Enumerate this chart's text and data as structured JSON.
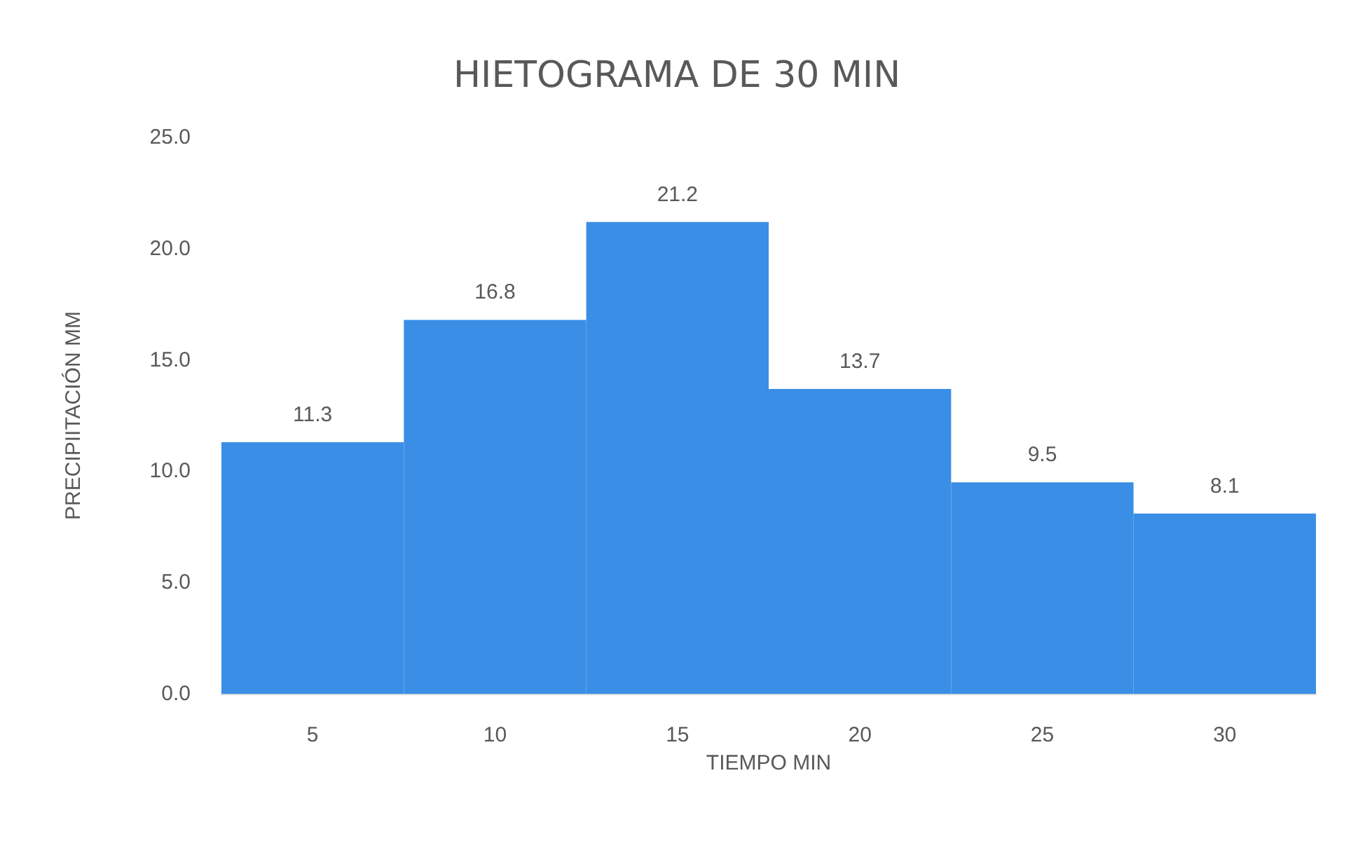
{
  "chart_data": {
    "type": "bar",
    "title": "HIETOGRAMA DE 30 MIN",
    "xlabel": "TIEMPO MIN",
    "ylabel": "PRECIPIITACIÓN MM",
    "categories": [
      "5",
      "10",
      "15",
      "20",
      "25",
      "30"
    ],
    "values": [
      11.3,
      16.8,
      21.2,
      13.7,
      9.5,
      8.1
    ],
    "color": "#3a8ee6",
    "ylim": [
      0,
      25
    ],
    "yticks": [
      {
        "value": 0,
        "label": "0.0"
      },
      {
        "value": 5,
        "label": "5.0"
      },
      {
        "value": 10,
        "label": "10.0"
      },
      {
        "value": 15,
        "label": "15.0"
      },
      {
        "value": 20,
        "label": "20.0"
      },
      {
        "value": 25,
        "label": "25.0"
      }
    ],
    "grid": false,
    "data_labels": true
  }
}
